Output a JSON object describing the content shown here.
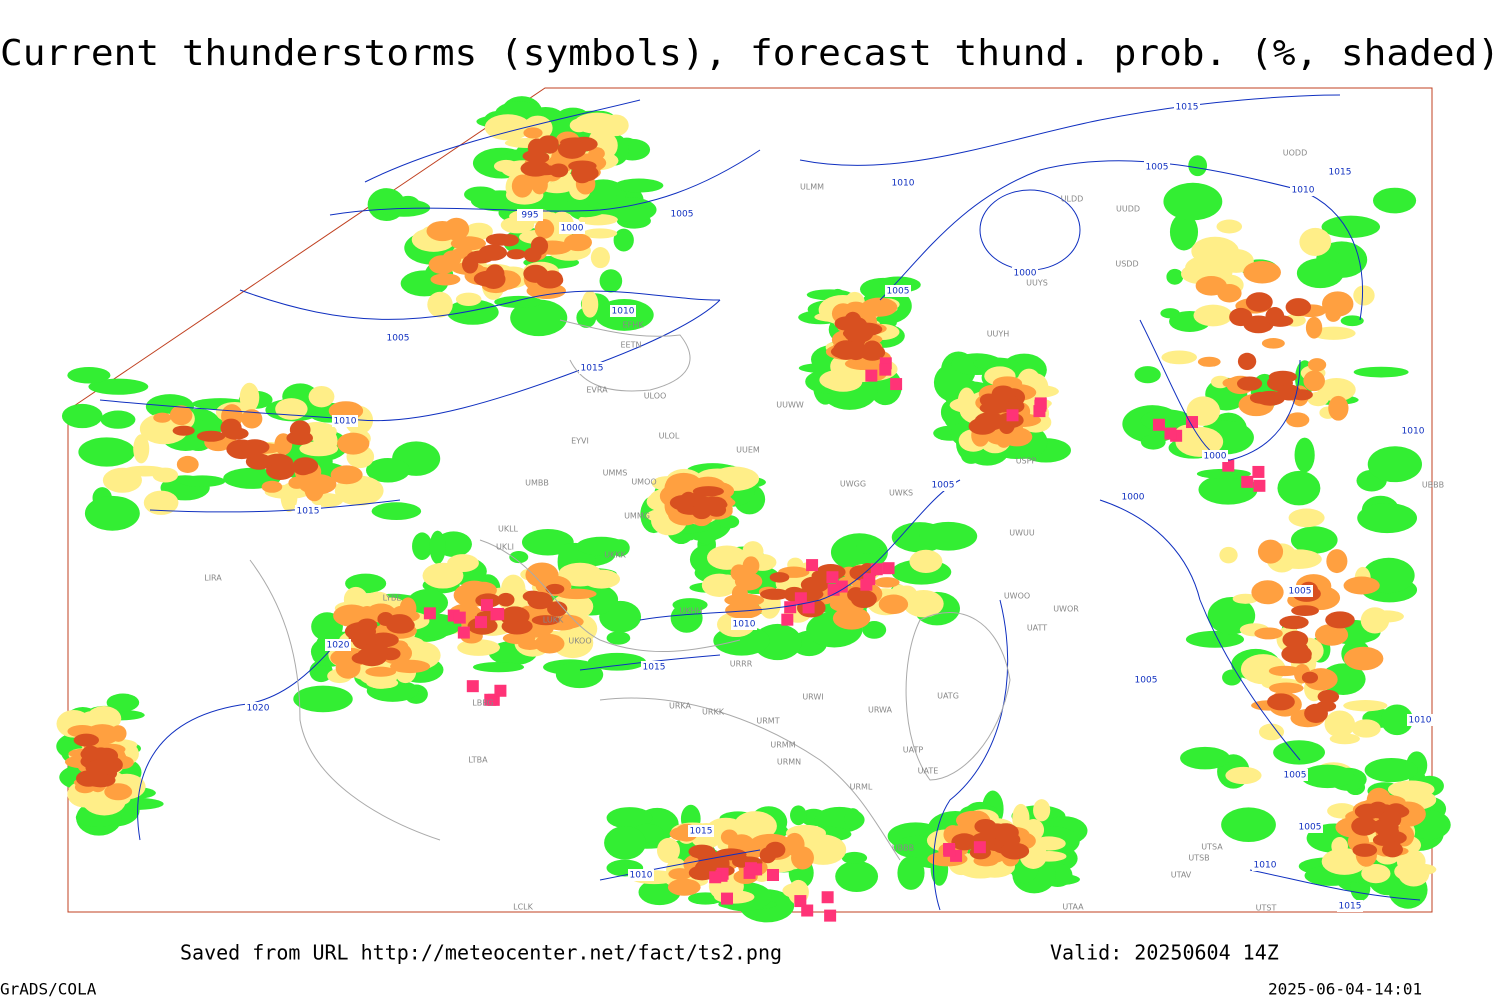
{
  "header": {
    "title": "Current thunderstorms (symbols), forecast thund. prob. (%, shaded)"
  },
  "footer": {
    "source": "Saved from URL http://meteocenter.net/fact/ts2.png",
    "valid": "Valid: 20250604 14Z",
    "software": "GrADS/COLA",
    "timestamp": "2025-06-04-14:01"
  },
  "map": {
    "isobar_labels": [
      "995",
      "1000",
      "1005",
      "1010",
      "1015",
      "1005",
      "1010",
      "1015",
      "1000",
      "1005",
      "1010",
      "1005",
      "1015",
      "1010",
      "1015",
      "1010",
      "1000",
      "1000",
      "1005",
      "1005",
      "1010",
      "1015",
      "1020",
      "1020",
      "1005",
      "1005",
      "1005",
      "1010",
      "1015",
      "1015",
      "1010",
      "1010"
    ],
    "stations": [
      "ULDD",
      "USDD",
      "UUYS",
      "UUYH",
      "ULMM",
      "EFHK",
      "EETN",
      "EVRA",
      "ULOO",
      "UUWW",
      "UUEM",
      "UMMS",
      "UMOO",
      "UMBB",
      "UMMG",
      "UWGG",
      "UWKS",
      "ULOL",
      "EYVI",
      "UKLL",
      "UKLI",
      "UKKK",
      "UKHH",
      "UKOO",
      "LUKK",
      "URRR",
      "URKA",
      "URKK",
      "URMT",
      "URMM",
      "URMN",
      "URWI",
      "URWA",
      "UATG",
      "UATE",
      "UATP",
      "URML",
      "UBBB",
      "LTBA",
      "LIRA",
      "LYBE",
      "LBBG",
      "UWOO",
      "UWOR",
      "UATT",
      "UWUU",
      "USPP",
      "UUDD",
      "LCLK",
      "UTSA",
      "UTSB",
      "UTAV",
      "UTAA",
      "UTST",
      "UODD",
      "UBBB"
    ]
  }
}
